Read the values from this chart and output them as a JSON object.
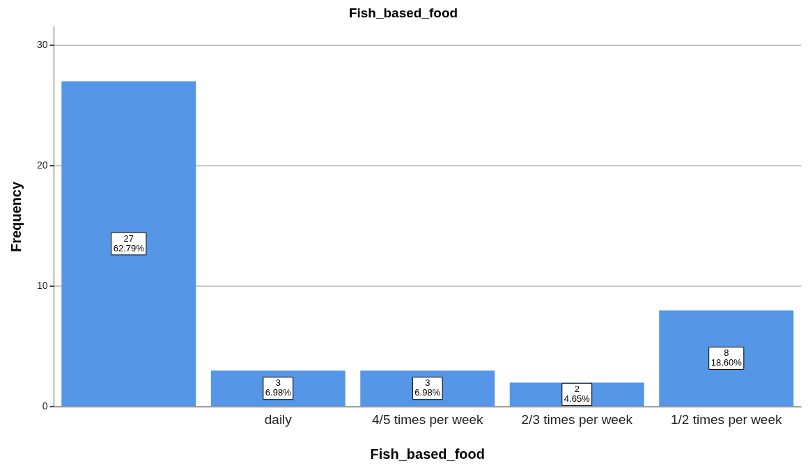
{
  "chart_data": {
    "type": "bar",
    "title": "Fish_based_food",
    "xlabel": "Fish_based_food",
    "ylabel": "Frequency",
    "categories": [
      null,
      "daily",
      "4/5 times per week",
      "2/3 times per week",
      "1/2 times per week"
    ],
    "values": [
      27,
      3,
      3,
      2,
      8
    ],
    "value_labels": [
      "27\n62.79%",
      "3\n6.98%",
      "3\n6.98%",
      "2\n4.65%",
      "8\n18.60%"
    ],
    "color": "#5596e6",
    "ylim": [
      0,
      31.5
    ],
    "yticks": [
      0,
      10,
      20,
      30
    ],
    "grid": "y",
    "legend": false
  }
}
